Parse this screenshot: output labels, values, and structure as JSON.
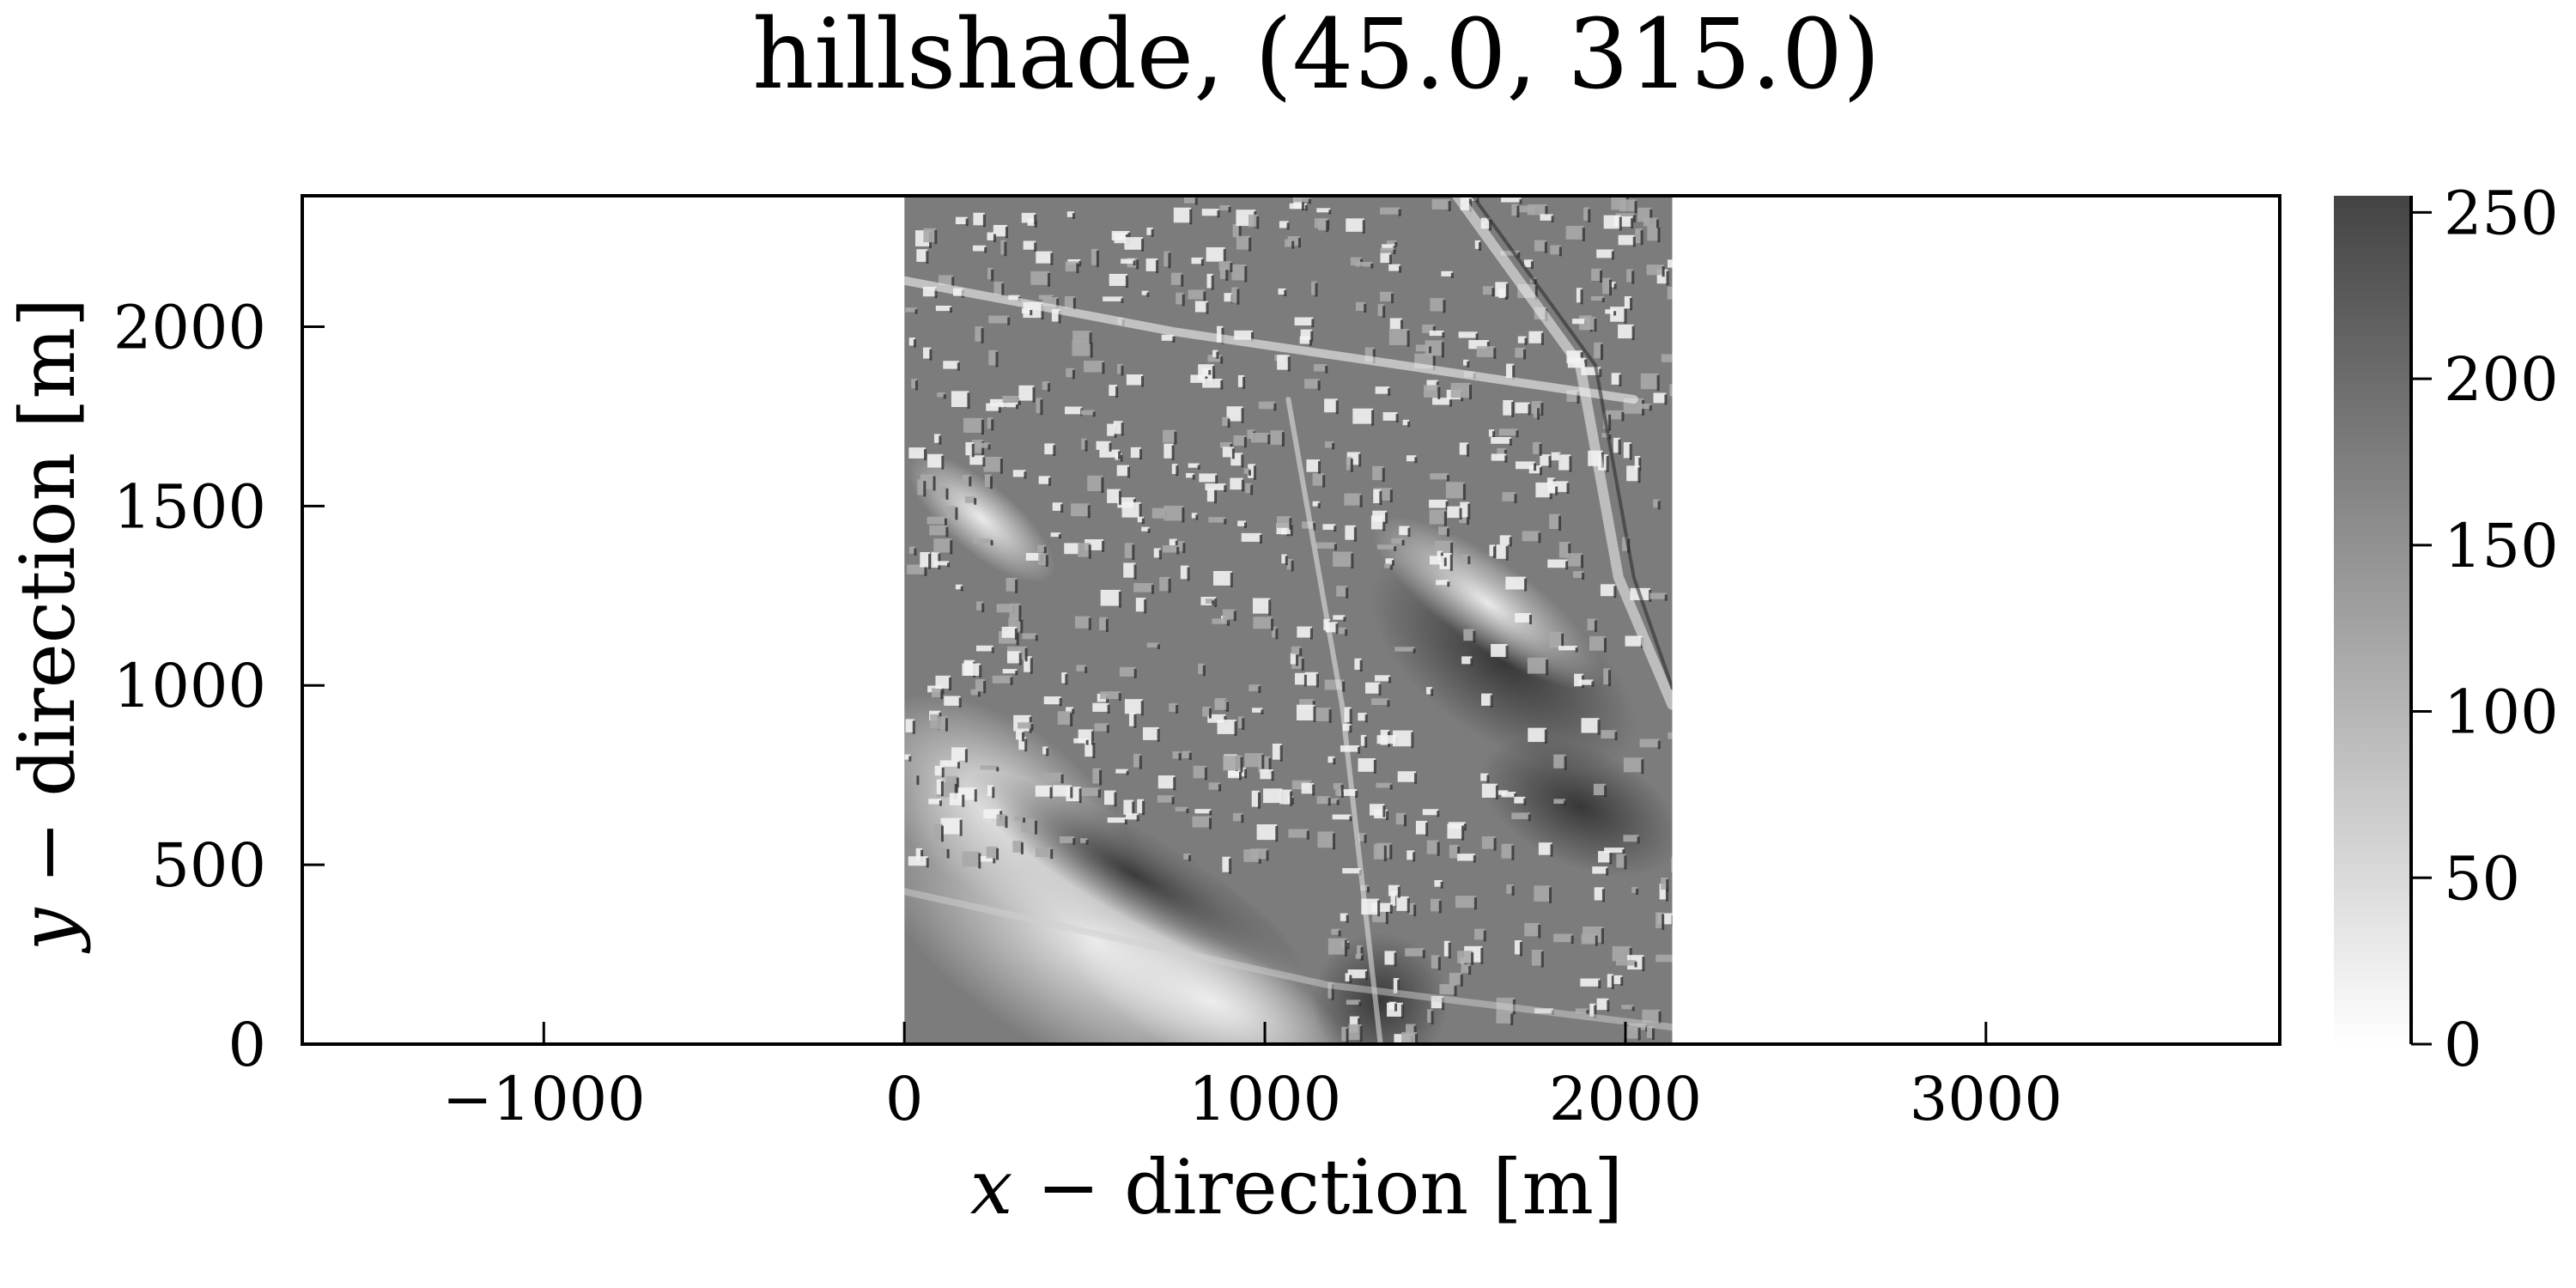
{
  "chart_data": {
    "type": "heatmap",
    "title": "hillshade, (45.0, 315.0)",
    "xlabel": {
      "var": "x",
      "rest": " − direction [m]"
    },
    "ylabel": {
      "var": "y",
      "rest": " − direction [m]"
    },
    "xlim": [
      -1670,
      3815
    ],
    "ylim": [
      0,
      2365
    ],
    "xticks": [
      -1000,
      0,
      1000,
      2000,
      3000
    ],
    "xtick_labels": [
      "−1000",
      "0",
      "1000",
      "2000",
      "3000"
    ],
    "yticks": [
      0,
      500,
      1000,
      1500,
      2000
    ],
    "ytick_labels": [
      "0",
      "500",
      "1000",
      "1500",
      "2000"
    ],
    "image_extent": {
      "x": [
        0,
        2130
      ],
      "y": [
        0,
        2365
      ]
    },
    "image_description": "grayscale hillshade relief of an urban area with buildings, streets, a river corridor and hills",
    "colorbar": {
      "range": [
        0,
        255
      ],
      "ticks": [
        0,
        50,
        100,
        150,
        200,
        250
      ],
      "tick_labels": [
        "0",
        "50",
        "100",
        "150",
        "200",
        "250"
      ],
      "color_low": "#ffffff",
      "color_high": "#444444"
    },
    "grid": false,
    "legend": "none"
  },
  "colors": {
    "axis": "#000000",
    "image_base": "#7c7c7c",
    "highlight": "#f2f2f2",
    "shadow": "#2f2f2f"
  }
}
